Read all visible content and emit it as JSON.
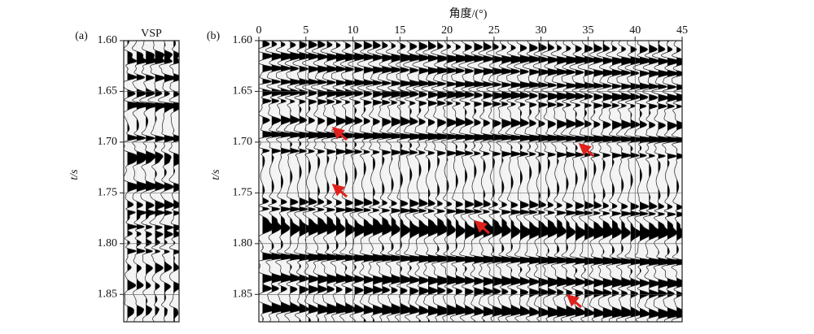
{
  "chart_data": [
    {
      "type": "seismic",
      "panel_label": "(a)",
      "title": "VSP",
      "ylabel": "t/s",
      "ylim": [
        1.6,
        1.877
      ],
      "yticks": [
        {
          "value": 1.6,
          "label": "1.60"
        },
        1.65,
        {
          "value": 1.7,
          "label": "1.70"
        },
        1.75,
        {
          "value": 1.8,
          "label": "1.80"
        },
        1.85
      ],
      "grid": true
    },
    {
      "type": "seismic",
      "panel_label": "(b)",
      "xlabel": "角度/(°)",
      "ylabel": "t/s",
      "xlim": [
        0,
        45
      ],
      "xticks": [
        0,
        5,
        10,
        15,
        20,
        25,
        30,
        35,
        40,
        45
      ],
      "ylim": [
        1.6,
        1.877
      ],
      "yticks": [
        {
          "value": 1.6,
          "label": "1.60"
        },
        1.65,
        {
          "value": 1.7,
          "label": "1.70"
        },
        1.75,
        {
          "value": 1.8,
          "label": "1.80"
        },
        1.85
      ],
      "grid": true
    }
  ]
}
